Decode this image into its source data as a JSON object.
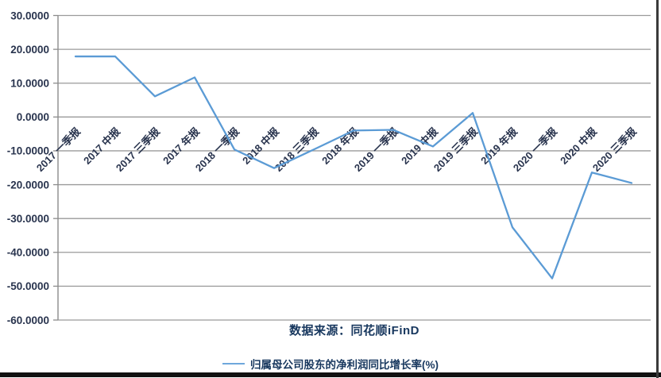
{
  "source_note": "数据来源：同花顺iFinD",
  "legend": {
    "label": "归属母公司股东的净利润同比增长率(%)"
  },
  "colors": {
    "series_line": "#5b9bd5",
    "legend_swatch": "#6fa8dc",
    "gridline": "#9a9a9a",
    "axis_line": "#8c8c8c",
    "tick_text": "#29344e",
    "title_text": "#17375e"
  },
  "chart_data": {
    "type": "line",
    "title": "",
    "xlabel": "",
    "ylabel": "",
    "categories": [
      "2017 一季报",
      "2017 中报",
      "2017 三季报",
      "2017 年报",
      "2018 一季报",
      "2018 中报",
      "2018 三季报",
      "2018 年报",
      "2019 一季报",
      "2019 中报",
      "2019 三季报",
      "2019 年报",
      "2020 一季报",
      "2020 中报",
      "2020 三季报"
    ],
    "series": [
      {
        "name": "归属母公司股东的净利润同比增长率(%)",
        "values": [
          17.9,
          17.9,
          6.1,
          11.7,
          -9.6,
          -15.1,
          -9.6,
          -4.0,
          -3.8,
          -8.7,
          1.2,
          -32.6,
          -47.7,
          -16.4,
          -19.5
        ]
      }
    ],
    "ylim": [
      -60,
      30
    ],
    "y_ticks": [
      30,
      20,
      10,
      0,
      -10,
      -20,
      -30,
      -40,
      -50,
      -60
    ],
    "y_tick_decimals": 4,
    "grid": true,
    "x_labels_rotation_deg": -45,
    "legend_position": "bottom"
  }
}
